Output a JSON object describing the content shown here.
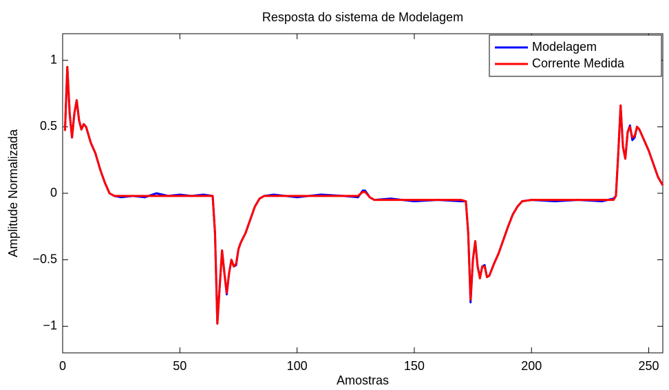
{
  "chart_data": {
    "type": "line",
    "title": "Resposta do sistema de Modelagem",
    "xlabel": "Amostras",
    "ylabel": "Amplitude Normalizada",
    "x": [
      1,
      2,
      3,
      4,
      5,
      6,
      7,
      8,
      9,
      10,
      12,
      14,
      16,
      18,
      20,
      22,
      25,
      30,
      35,
      40,
      45,
      50,
      55,
      60,
      64,
      65,
      66,
      67,
      68,
      69,
      70,
      71,
      72,
      73,
      74,
      75,
      76,
      78,
      80,
      82,
      84,
      86,
      90,
      100,
      110,
      120,
      126,
      128,
      129,
      131,
      133,
      140,
      150,
      160,
      170,
      172,
      173,
      174,
      175,
      176,
      177,
      178,
      179,
      180,
      181,
      182,
      184,
      186,
      188,
      190,
      192,
      194,
      196,
      200,
      210,
      220,
      230,
      235,
      236,
      237,
      238,
      239,
      240,
      241,
      242,
      243,
      244,
      245,
      246,
      248,
      250,
      252,
      254,
      256
    ],
    "series": [
      {
        "name": "Modelagem",
        "color": "#0000ff",
        "values": [
          0.47,
          0.95,
          0.6,
          0.42,
          0.6,
          0.7,
          0.55,
          0.48,
          0.52,
          0.5,
          0.38,
          0.3,
          0.18,
          0.08,
          0.0,
          -0.02,
          -0.03,
          -0.02,
          -0.03,
          0.0,
          -0.02,
          -0.01,
          -0.02,
          -0.01,
          -0.02,
          -0.3,
          -0.98,
          -0.7,
          -0.43,
          -0.6,
          -0.76,
          -0.6,
          -0.5,
          -0.55,
          -0.54,
          -0.42,
          -0.37,
          -0.3,
          -0.2,
          -0.1,
          -0.04,
          -0.02,
          -0.01,
          -0.03,
          -0.01,
          -0.02,
          -0.03,
          0.02,
          0.02,
          -0.03,
          -0.05,
          -0.04,
          -0.06,
          -0.05,
          -0.06,
          -0.06,
          -0.3,
          -0.82,
          -0.5,
          -0.36,
          -0.55,
          -0.63,
          -0.55,
          -0.54,
          -0.63,
          -0.62,
          -0.53,
          -0.45,
          -0.35,
          -0.25,
          -0.16,
          -0.1,
          -0.06,
          -0.05,
          -0.06,
          -0.05,
          -0.06,
          -0.04,
          -0.02,
          0.3,
          0.66,
          0.35,
          0.26,
          0.46,
          0.51,
          0.4,
          0.42,
          0.5,
          0.48,
          0.4,
          0.32,
          0.22,
          0.12,
          0.06
        ]
      },
      {
        "name": "Corrente Medida",
        "color": "#ff0000",
        "values": [
          0.47,
          0.95,
          0.6,
          0.42,
          0.6,
          0.7,
          0.55,
          0.48,
          0.52,
          0.5,
          0.38,
          0.3,
          0.18,
          0.08,
          0.0,
          -0.02,
          -0.02,
          -0.02,
          -0.02,
          -0.02,
          -0.02,
          -0.02,
          -0.02,
          -0.02,
          -0.02,
          -0.3,
          -0.98,
          -0.7,
          -0.43,
          -0.6,
          -0.75,
          -0.6,
          -0.5,
          -0.55,
          -0.53,
          -0.42,
          -0.37,
          -0.3,
          -0.2,
          -0.1,
          -0.04,
          -0.02,
          -0.02,
          -0.02,
          -0.02,
          -0.02,
          -0.02,
          0.01,
          0.01,
          -0.03,
          -0.05,
          -0.05,
          -0.05,
          -0.05,
          -0.05,
          -0.06,
          -0.3,
          -0.8,
          -0.5,
          -0.36,
          -0.55,
          -0.64,
          -0.55,
          -0.55,
          -0.63,
          -0.62,
          -0.53,
          -0.45,
          -0.35,
          -0.25,
          -0.16,
          -0.1,
          -0.06,
          -0.05,
          -0.05,
          -0.05,
          -0.05,
          -0.05,
          -0.02,
          0.3,
          0.66,
          0.35,
          0.26,
          0.46,
          0.5,
          0.42,
          0.43,
          0.5,
          0.48,
          0.4,
          0.32,
          0.22,
          0.12,
          0.06
        ]
      }
    ],
    "xlim": [
      0,
      256
    ],
    "xticks": [
      0,
      50,
      100,
      150,
      200,
      250
    ],
    "ylim": [
      -1.2,
      1.2
    ],
    "yticks": [
      {
        "value": -1,
        "label": "−1"
      },
      {
        "value": -0.5,
        "label": "−0.5"
      },
      0,
      0.5,
      1
    ],
    "legend": "upper right"
  }
}
